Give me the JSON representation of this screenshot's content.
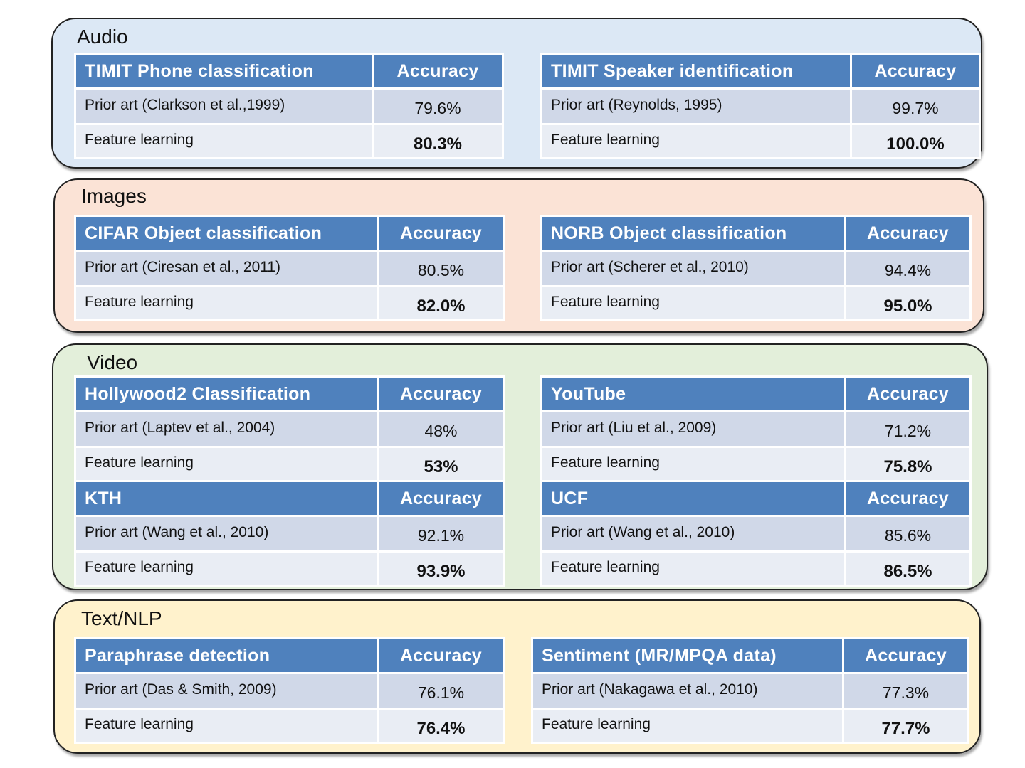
{
  "sections": [
    {
      "title": "Audio",
      "color": "#dce8f5",
      "tables": [
        {
          "header": "TIMIT Phone classification",
          "metric": "Accuracy",
          "prior": "Prior art (Clarkson et al.,1999)",
          "prior_value": "79.6%",
          "ours": "Feature learning",
          "ours_value": "80.3%"
        },
        {
          "header": "TIMIT Speaker identification",
          "metric": "Accuracy",
          "prior": "Prior art (Reynolds, 1995)",
          "prior_value": "99.7%",
          "ours": "Feature learning",
          "ours_value": "100.0%"
        }
      ]
    },
    {
      "title": "Images",
      "color": "#fbe3d6",
      "tables": [
        {
          "header": "CIFAR Object classification",
          "metric": "Accuracy",
          "prior": "Prior art (Ciresan et al., 2011)",
          "prior_value": "80.5%",
          "ours": "Feature learning",
          "ours_value": "82.0%"
        },
        {
          "header": "NORB Object classification",
          "metric": "Accuracy",
          "prior": "Prior art (Scherer et al., 2010)",
          "prior_value": "94.4%",
          "ours": "Feature learning",
          "ours_value": "95.0%"
        }
      ]
    },
    {
      "title": "Video",
      "color": "#e3efda",
      "tables": [
        {
          "header": "Hollywood2 Classification",
          "metric": "Accuracy",
          "prior": "Prior art (Laptev et al., 2004)",
          "prior_value": "48%",
          "ours": "Feature learning",
          "ours_value": "53%"
        },
        {
          "header": "YouTube",
          "metric": "Accuracy",
          "prior": "Prior art (Liu et al., 2009)",
          "prior_value": "71.2%",
          "ours": "Feature learning",
          "ours_value": "75.8%"
        },
        {
          "header": "KTH",
          "metric": "Accuracy",
          "prior": "Prior art (Wang et al., 2010)",
          "prior_value": "92.1%",
          "ours": "Feature learning",
          "ours_value": "93.9%"
        },
        {
          "header": "UCF",
          "metric": "Accuracy",
          "prior": "Prior art (Wang et al., 2010)",
          "prior_value": "85.6%",
          "ours": "Feature learning",
          "ours_value": "86.5%"
        }
      ]
    },
    {
      "title": "Text/NLP",
      "color": "#fff2cc",
      "tables": [
        {
          "header": "Paraphrase detection",
          "metric": "Accuracy",
          "prior": "Prior art (Das & Smith, 2009)",
          "prior_value": "76.1%",
          "ours": "Feature learning",
          "ours_value": "76.4%"
        },
        {
          "header": "Sentiment (MR/MPQA data)",
          "metric": "Accuracy",
          "prior": "Prior art (Nakagawa et al., 2010)",
          "prior_value": "77.3%",
          "ours": "Feature learning",
          "ours_value": "77.7%"
        }
      ]
    }
  ]
}
